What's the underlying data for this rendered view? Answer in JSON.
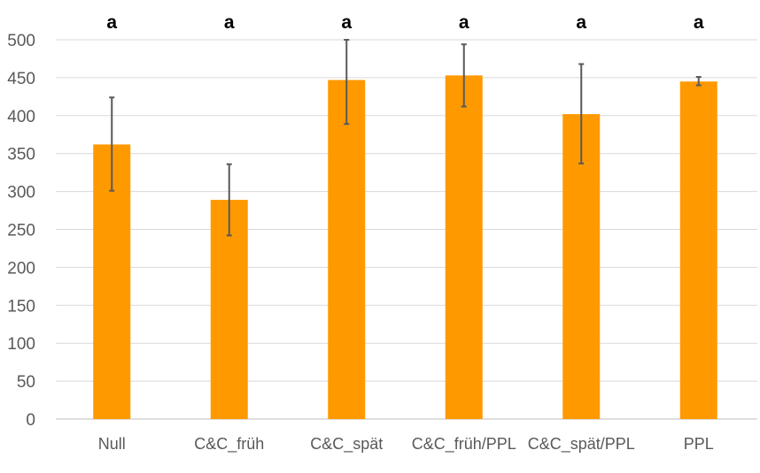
{
  "chart_data": {
    "type": "bar",
    "title": "",
    "xlabel": "",
    "ylabel": "",
    "ylim": [
      0,
      500
    ],
    "yticks": [
      0,
      50,
      100,
      150,
      200,
      250,
      300,
      350,
      400,
      450,
      500
    ],
    "grid": true,
    "legend": "none",
    "categories": [
      "Null",
      "C&C_früh",
      "C&C_spät",
      "C&C_früh/PPL",
      "C&C_spät/PPL",
      "PPL"
    ],
    "values": [
      362,
      289,
      447,
      453,
      402,
      445
    ],
    "error_low": [
      301,
      242,
      389,
      412,
      337,
      440
    ],
    "error_high": [
      424,
      336,
      500,
      494,
      468,
      451
    ],
    "significance_letters": [
      "a",
      "a",
      "a",
      "a",
      "a",
      "a"
    ],
    "colors": {
      "bar": "#FF9900",
      "error_bar": "#595959",
      "grid": "#D9D9D9",
      "tick_text": "#595959"
    }
  }
}
